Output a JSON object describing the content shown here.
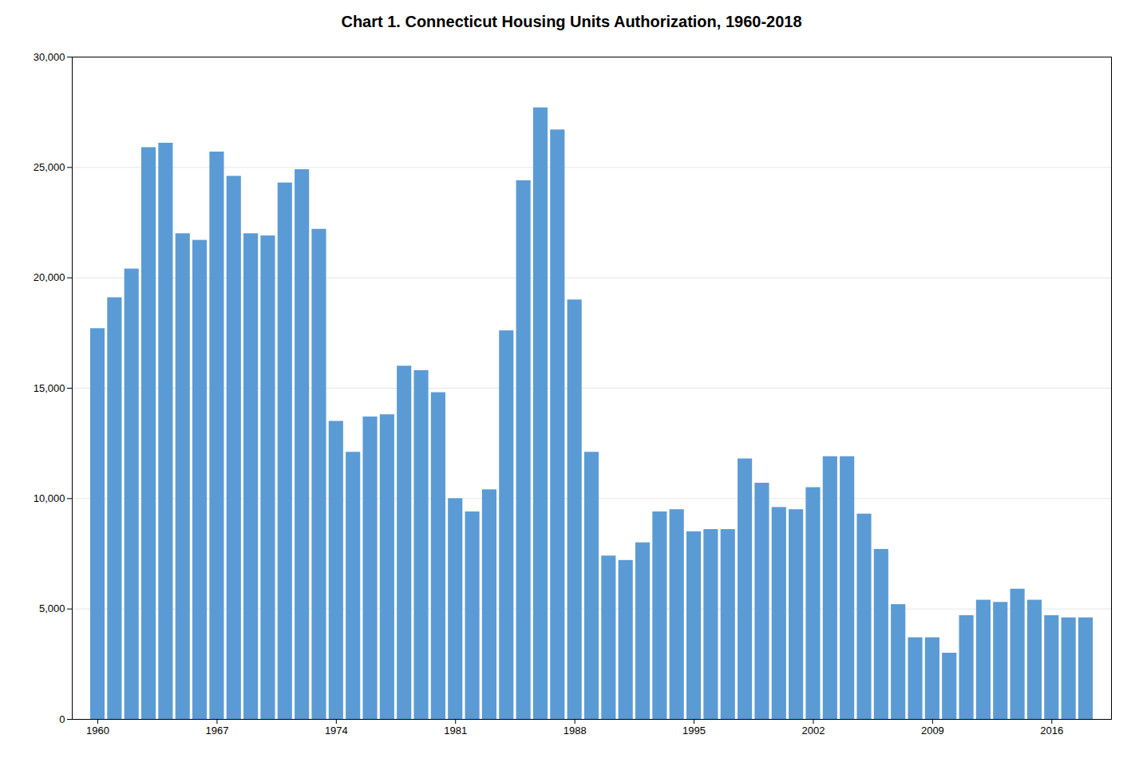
{
  "chart_data": {
    "type": "bar",
    "title": "Chart 1. Connecticut Housing Units Authorization, 1960-2018",
    "x": [
      1960,
      1961,
      1962,
      1963,
      1964,
      1965,
      1966,
      1967,
      1968,
      1969,
      1970,
      1971,
      1972,
      1973,
      1974,
      1975,
      1976,
      1977,
      1978,
      1979,
      1980,
      1981,
      1982,
      1983,
      1984,
      1985,
      1986,
      1987,
      1988,
      1989,
      1990,
      1991,
      1992,
      1993,
      1994,
      1995,
      1996,
      1997,
      1998,
      1999,
      2000,
      2001,
      2002,
      2003,
      2004,
      2005,
      2006,
      2007,
      2008,
      2009,
      2010,
      2011,
      2012,
      2013,
      2014,
      2015,
      2016,
      2017,
      2018
    ],
    "values": [
      17700,
      19100,
      20400,
      25900,
      26100,
      22000,
      21700,
      25700,
      24600,
      22000,
      21900,
      24300,
      24900,
      22200,
      13500,
      12100,
      13700,
      13800,
      16000,
      15800,
      14800,
      10000,
      9400,
      10400,
      17600,
      24400,
      27700,
      26700,
      19000,
      12100,
      7400,
      7200,
      8000,
      9400,
      9500,
      8500,
      8600,
      8600,
      11800,
      10700,
      9600,
      9500,
      10500,
      11900,
      11900,
      9300,
      7700,
      5200,
      3700,
      3700,
      3000,
      4700,
      5400,
      5300,
      5900,
      5400,
      4700,
      4600,
      4600
    ],
    "color": "#5b9bd5",
    "xlim": [
      1958.5,
      2019.5
    ],
    "xticks": [
      1960,
      1967,
      1974,
      1981,
      1988,
      1995,
      2002,
      2009,
      2016
    ],
    "ylim": [
      0,
      30000
    ],
    "yticks": [
      0,
      {
        "value": 5000,
        "label": "5,000"
      },
      {
        "value": 10000,
        "label": "10,000"
      },
      {
        "value": 15000,
        "label": "15,000"
      },
      {
        "value": 20000,
        "label": "20,000"
      },
      {
        "value": 25000,
        "label": "25,000"
      },
      {
        "value": 30000,
        "label": "30,000"
      }
    ],
    "grid": true
  }
}
